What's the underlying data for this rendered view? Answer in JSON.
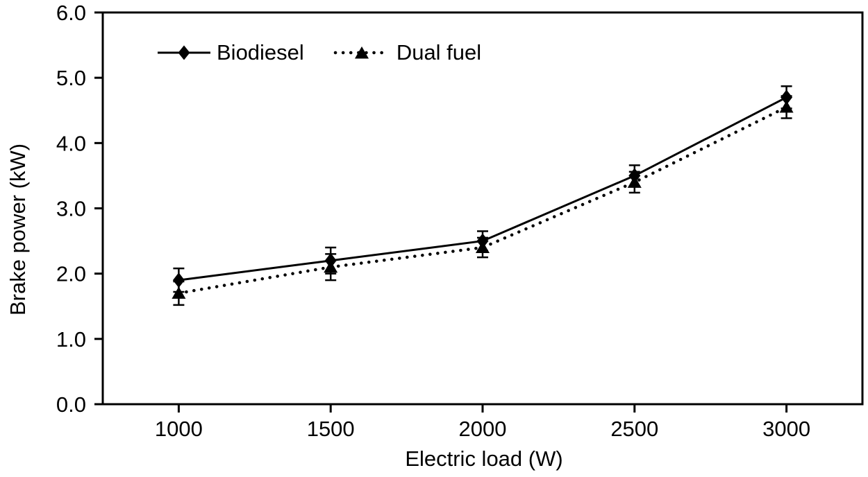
{
  "colors": {
    "foreground": "#000000",
    "background": "#ffffff"
  },
  "chart_data": {
    "type": "line",
    "title": "",
    "xlabel": "Electric load (W)",
    "ylabel": "Brake power (kW)",
    "x": [
      1000,
      1500,
      2000,
      2500,
      3000
    ],
    "x_tick_labels": [
      "1000",
      "1500",
      "2000",
      "2500",
      "3000"
    ],
    "y_tick_labels": [
      "0.0",
      "1.0",
      "2.0",
      "3.0",
      "4.0",
      "5.0",
      "6.0"
    ],
    "xlim": [
      750,
      3250
    ],
    "ylim": [
      0,
      6
    ],
    "grid": false,
    "legend_position": "top-left-inside",
    "series": [
      {
        "name": "Biodiesel",
        "marker": "diamond",
        "line_style": "solid",
        "color": "#000000",
        "values": [
          1.9,
          2.2,
          2.5,
          3.5,
          4.7
        ],
        "errors": [
          0.18,
          0.2,
          0.15,
          0.16,
          0.17
        ]
      },
      {
        "name": "Dual fuel",
        "marker": "triangle",
        "line_style": "dotted",
        "color": "#000000",
        "values": [
          1.7,
          2.1,
          2.4,
          3.4,
          4.55
        ],
        "errors": [
          0.18,
          0.2,
          0.15,
          0.16,
          0.17
        ]
      }
    ]
  }
}
